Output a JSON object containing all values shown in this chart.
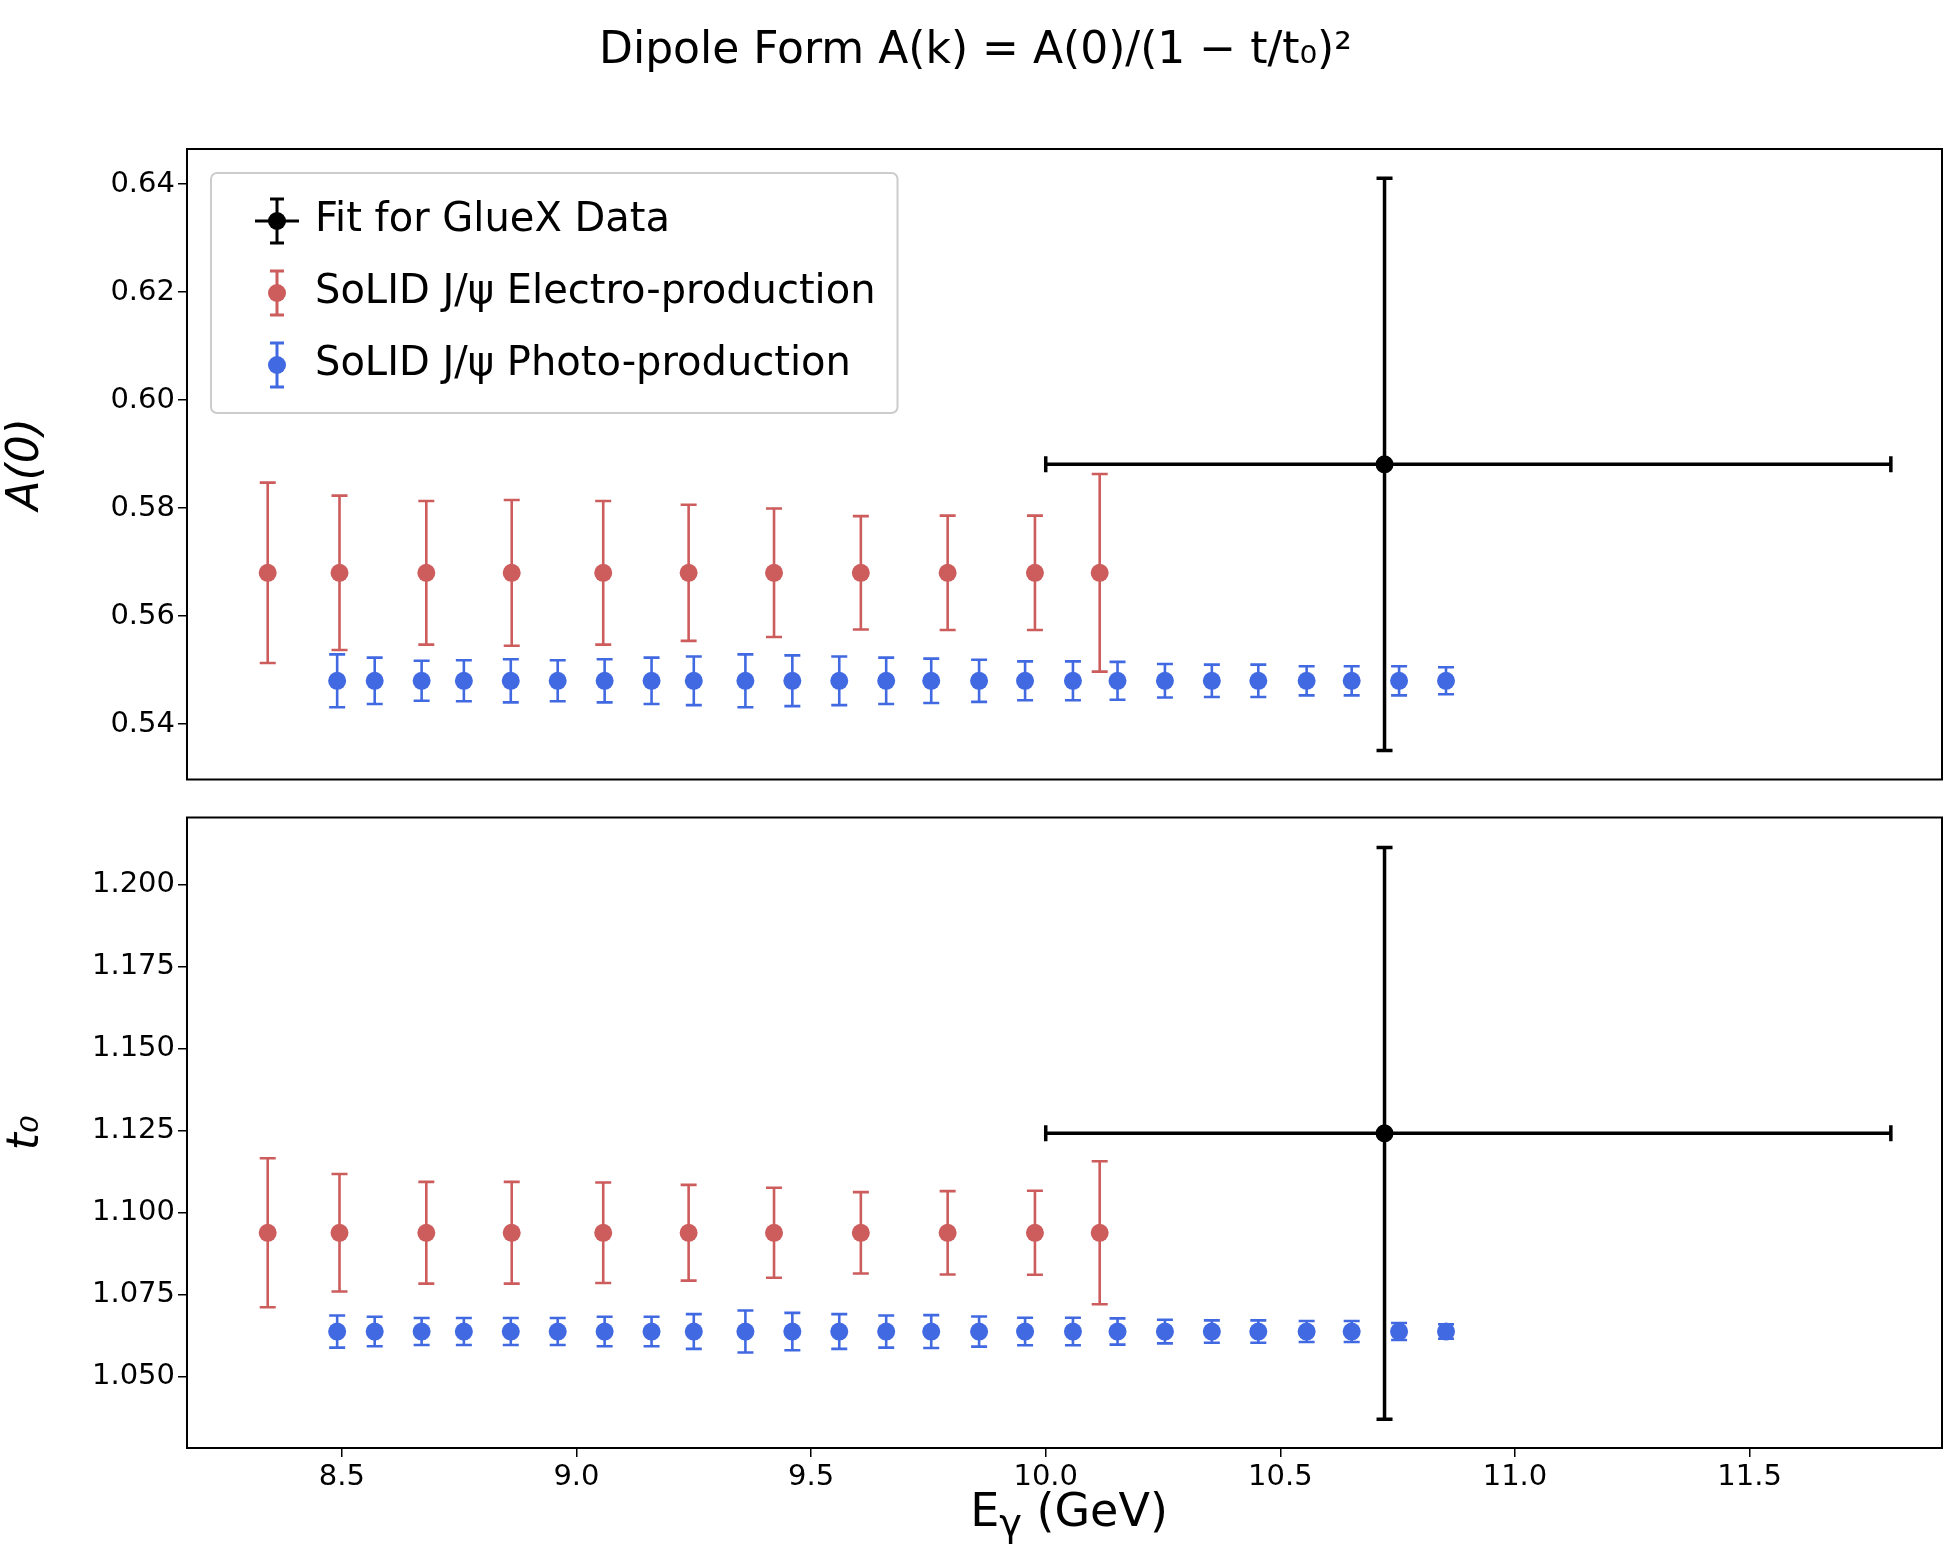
{
  "chart_data": [
    {
      "type": "scatter",
      "title": "Dipole Form A(k) = A(0)/(1 − t/t₀)²",
      "ylabel": "A(0)",
      "xlim": [
        8.17,
        11.91
      ],
      "ylim": [
        0.5297,
        0.6465
      ],
      "yticks": [
        0.54,
        0.56,
        0.58,
        {
          "value": 0.6,
          "label": "0.60"
        },
        0.62,
        0.64
      ],
      "tick_labels": "y",
      "legend": "top left",
      "marker": "circle",
      "series": [
        {
          "name": "Fit for GlueX Data",
          "color": "#000000",
          "x": [
            10.722
          ],
          "values": [
            0.5881
          ],
          "errors": [
            0.053
          ],
          "xerrors": [
            [
              10.0,
              11.801
            ]
          ]
        },
        {
          "name": "SoLID J/ψ Electro-production",
          "color": "#cd5c5c",
          "x": [
            8.342,
            8.495,
            8.68,
            8.862,
            9.057,
            9.239,
            9.421,
            9.606,
            9.791,
            9.977,
            10.115
          ],
          "values": [
            0.568,
            0.568,
            0.568,
            0.568,
            0.568,
            0.568,
            0.568,
            0.568,
            0.568,
            0.568,
            0.568
          ],
          "errors": [
            0.0167,
            0.0143,
            0.0133,
            0.0135,
            0.0133,
            0.0126,
            0.0119,
            0.0105,
            0.0106,
            0.0106,
            0.0183
          ]
        },
        {
          "name": "SoLID J/ψ Photo-production",
          "color": "#4169e1",
          "x": [
            8.49,
            8.57,
            8.67,
            8.76,
            8.86,
            8.96,
            9.06,
            9.16,
            9.25,
            9.36,
            9.46,
            9.56,
            9.66,
            9.756,
            9.858,
            9.956,
            10.058,
            10.153,
            10.254,
            10.354,
            10.453,
            10.556,
            10.652,
            10.753,
            10.853
          ],
          "values": [
            0.548,
            0.548,
            0.548,
            0.548,
            0.548,
            0.548,
            0.548,
            0.548,
            0.548,
            0.548,
            0.548,
            0.548,
            0.548,
            0.548,
            0.548,
            0.548,
            0.548,
            0.548,
            0.548,
            0.548,
            0.548,
            0.548,
            0.548,
            0.548,
            0.548
          ],
          "errors": [
            0.0049,
            0.0043,
            0.0037,
            0.0038,
            0.004,
            0.0038,
            0.004,
            0.0043,
            0.0045,
            0.0049,
            0.0047,
            0.0045,
            0.0043,
            0.0041,
            0.0039,
            0.0036,
            0.0036,
            0.0035,
            0.0031,
            0.003,
            0.003,
            0.0027,
            0.0027,
            0.0027,
            0.0025
          ]
        }
      ]
    },
    {
      "type": "scatter",
      "xlabel": "E$_{γ}$ (GeV)",
      "ylabel": "t₀",
      "xlim": [
        8.17,
        11.91
      ],
      "xticks": [
        8.5,
        {
          "value": 9,
          "label": "9.0"
        },
        9.5,
        {
          "value": 10,
          "label": "10.0"
        },
        10.5,
        {
          "value": 11,
          "label": "11.0"
        },
        11.5
      ],
      "ylim": [
        1.0283,
        1.2205
      ],
      "yticks": [
        {
          "value": 1.05,
          "label": "1.050"
        },
        1.075,
        {
          "value": 1.1,
          "label": "1.100"
        },
        1.125,
        {
          "value": 1.15,
          "label": "1.150"
        },
        1.175,
        {
          "value": 1.2,
          "label": "1.200"
        }
      ],
      "marker": "circle",
      "series": [
        {
          "color": "#000000",
          "x": [
            10.722
          ],
          "values": [
            1.1242
          ],
          "errors": [
            0.0871
          ],
          "xerrors": [
            [
              10.0,
              11.801
            ]
          ]
        },
        {
          "color": "#cd5c5c",
          "x": [
            8.342,
            8.495,
            8.68,
            8.862,
            9.057,
            9.239,
            9.421,
            9.606,
            9.791,
            9.977,
            10.115
          ],
          "values": [
            1.0939,
            1.0939,
            1.0939,
            1.0939,
            1.0939,
            1.0939,
            1.0939,
            1.0939,
            1.0939,
            1.0939,
            1.0939
          ],
          "errors": [
            0.0227,
            0.0179,
            0.0155,
            0.0155,
            0.0153,
            0.0146,
            0.0137,
            0.0124,
            0.0127,
            0.0128,
            0.0218
          ]
        },
        {
          "color": "#4169e1",
          "x": [
            8.49,
            8.57,
            8.67,
            8.76,
            8.86,
            8.96,
            9.06,
            9.16,
            9.25,
            9.36,
            9.46,
            9.56,
            9.66,
            9.756,
            9.858,
            9.956,
            10.058,
            10.153,
            10.254,
            10.354,
            10.453,
            10.556,
            10.652,
            10.753,
            10.853
          ],
          "values": [
            1.0638,
            1.0638,
            1.0638,
            1.0638,
            1.0638,
            1.0638,
            1.0638,
            1.0638,
            1.0638,
            1.0638,
            1.0638,
            1.0638,
            1.0638,
            1.0638,
            1.0638,
            1.0638,
            1.0638,
            1.0638,
            1.0638,
            1.0638,
            1.0638,
            1.0638,
            1.0638,
            1.0638,
            1.0638
          ],
          "errors": [
            0.0049,
            0.0045,
            0.0041,
            0.0041,
            0.0041,
            0.0041,
            0.0045,
            0.0045,
            0.0053,
            0.0064,
            0.0057,
            0.0053,
            0.0049,
            0.005,
            0.0046,
            0.0042,
            0.0042,
            0.004,
            0.0036,
            0.0034,
            0.0034,
            0.0032,
            0.0032,
            0.0026,
            0.0022
          ]
        }
      ]
    }
  ]
}
